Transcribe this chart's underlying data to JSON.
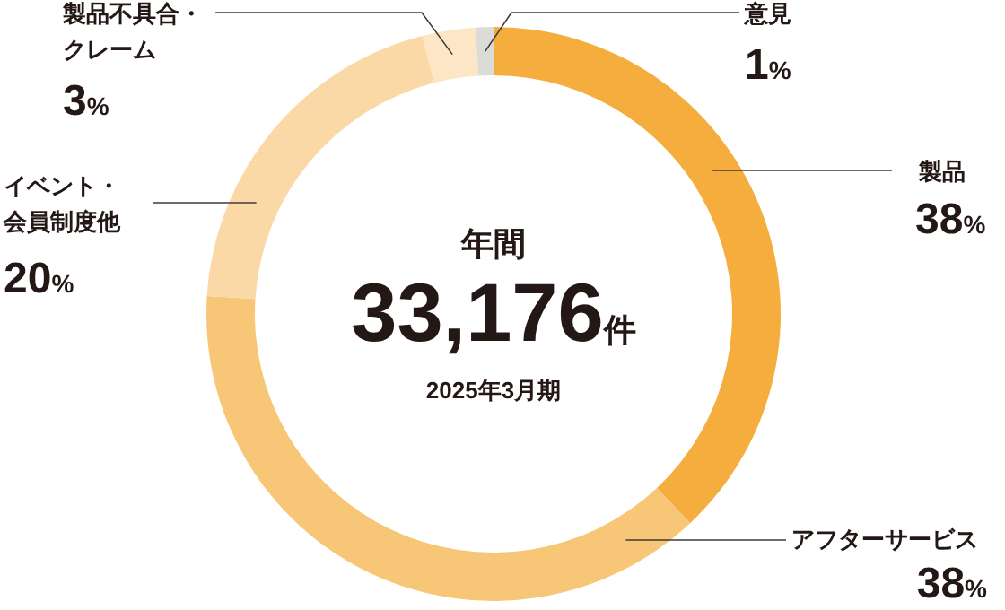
{
  "chart_data": {
    "type": "donut",
    "categories": [
      "製品",
      "アフターサービス",
      "イベント・会員制度他",
      "製品不具合・クレーム",
      "意見"
    ],
    "value_labels": [
      "38%",
      "38%",
      "20%",
      "3%",
      "1%"
    ],
    "values": [
      38,
      38,
      20,
      3,
      1
    ],
    "colors": [
      "#f5ad3e",
      "#f8c677",
      "#fad9a6",
      "#fce6c6",
      "#dcdcd6"
    ],
    "annotations": [
      "年間",
      "33,176件",
      "2025年3月期"
    ]
  }
}
